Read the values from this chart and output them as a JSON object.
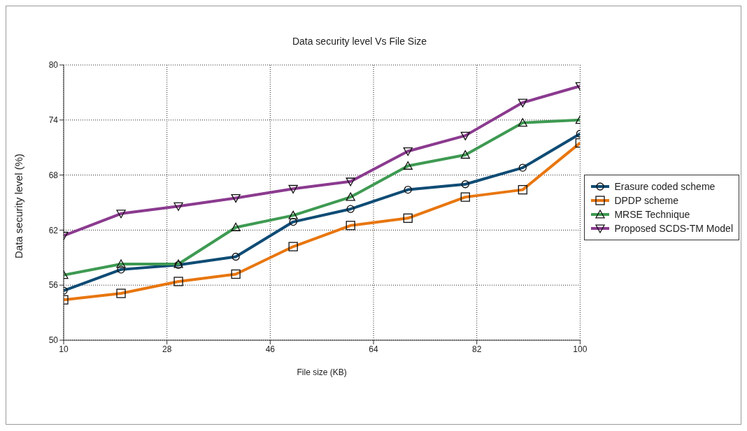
{
  "chart_data": {
    "type": "line",
    "title": "Data security level Vs File Size",
    "xlabel": "File size (KB)",
    "ylabel": "Data security level (%)",
    "x": [
      10,
      20,
      30,
      40,
      50,
      60,
      70,
      80,
      90,
      100
    ],
    "xlim": [
      10,
      100
    ],
    "xticks": [
      10,
      28,
      46,
      64,
      82,
      100
    ],
    "ylim": [
      50,
      80
    ],
    "yticks": [
      50,
      56,
      62,
      68,
      74,
      80
    ],
    "grid": true,
    "legend": "right",
    "series": [
      {
        "name": "Erasure coded scheme",
        "color": "#0f4c75",
        "marker": "circle",
        "values": [
          55.4,
          57.7,
          58.2,
          59.1,
          62.9,
          64.3,
          66.4,
          67.0,
          68.8,
          72.5
        ]
      },
      {
        "name": "DPDP scheme",
        "color": "#e8760f",
        "marker": "square",
        "values": [
          54.4,
          55.1,
          56.4,
          57.2,
          60.2,
          62.5,
          63.3,
          65.6,
          66.4,
          71.5
        ]
      },
      {
        "name": "MRSE Technique",
        "color": "#3e9a52",
        "marker": "triangle",
        "values": [
          57.1,
          58.3,
          58.3,
          62.3,
          63.6,
          65.6,
          69.0,
          70.2,
          73.7,
          74.0
        ]
      },
      {
        "name": "Proposed SCDS-TM Model",
        "color": "#8b3a8f",
        "marker": "triangle-down",
        "values": [
          61.4,
          63.8,
          64.6,
          65.5,
          66.5,
          67.3,
          70.6,
          72.3,
          75.9,
          77.7
        ]
      }
    ]
  }
}
